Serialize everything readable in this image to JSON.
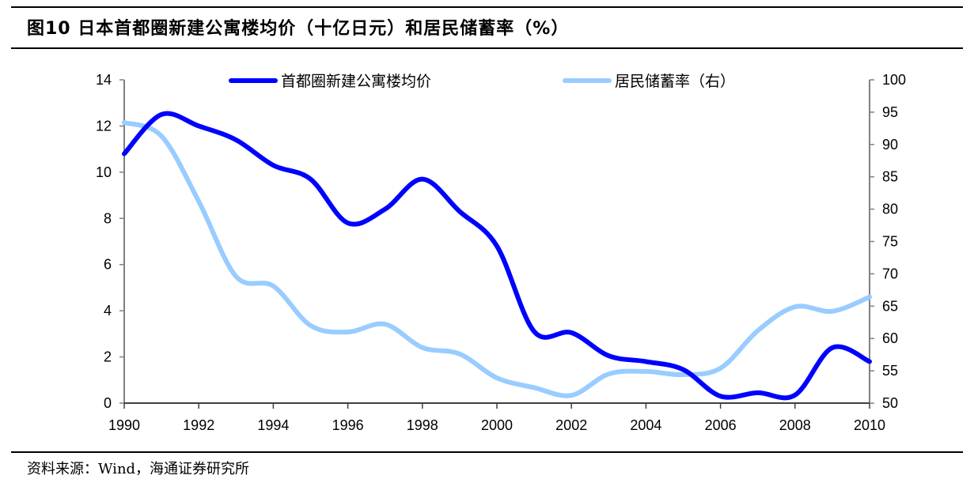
{
  "header": {
    "title": "图10 日本首都圈新建公寓楼均价（十亿日元）和居民储蓄率（%）"
  },
  "footer": {
    "source": "资料来源：Wind，海通证券研究所"
  },
  "colors": {
    "price_series": "#0000ff",
    "savings_series": "#99ccff",
    "axis": "#808080",
    "text": "#000000"
  },
  "chart_data": {
    "type": "line",
    "title": "图10 日本首都圈新建公寓楼均价（十亿日元）和居民储蓄率（%）",
    "xlabel": "",
    "ylabel": "",
    "ylabel_right": "",
    "x": [
      1990,
      1991,
      1992,
      1993,
      1994,
      1995,
      1996,
      1997,
      1998,
      1999,
      2000,
      2001,
      2002,
      2003,
      2004,
      2005,
      2006,
      2007,
      2008,
      2009,
      2010
    ],
    "x_ticks": [
      "1990",
      "1992",
      "1994",
      "1996",
      "1998",
      "2000",
      "2002",
      "2004",
      "2006",
      "2008",
      "2010"
    ],
    "xlim": [
      1990,
      2010
    ],
    "ylim": [
      0,
      14
    ],
    "y_ticks": [
      "0",
      "2",
      "4",
      "6",
      "8",
      "10",
      "12",
      "14"
    ],
    "ylim_right": [
      50,
      100
    ],
    "y_ticks_right": [
      "50",
      "55",
      "60",
      "65",
      "70",
      "75",
      "80",
      "85",
      "90",
      "95",
      "100"
    ],
    "grid": false,
    "legend_position": "top-center",
    "smooth": true,
    "series": [
      {
        "name": "首都圈新建公寓楼均价",
        "axis": "left",
        "color": "#0000ff",
        "values": [
          10.8,
          12.5,
          12.0,
          11.4,
          10.3,
          9.7,
          7.8,
          8.4,
          9.7,
          8.3,
          6.8,
          3.1,
          3.05,
          2.05,
          1.8,
          1.45,
          0.3,
          0.45,
          0.35,
          2.4,
          1.8
        ]
      },
      {
        "name": "居民储蓄率（右）",
        "axis": "right",
        "color": "#99ccff",
        "values": [
          93.4,
          91.3,
          81.2,
          69.6,
          68.1,
          62.0,
          61.0,
          62.2,
          58.6,
          57.6,
          53.9,
          52.4,
          51.2,
          54.5,
          54.9,
          54.4,
          55.4,
          61.2,
          64.9,
          64.2,
          66.4
        ]
      }
    ]
  }
}
